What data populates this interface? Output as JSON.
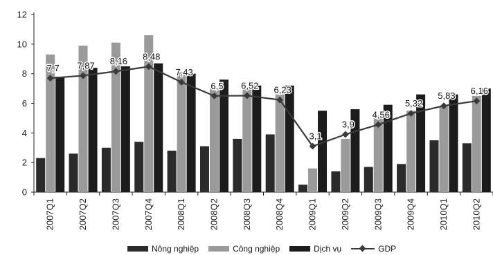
{
  "chart_data": {
    "type": "bar",
    "categories": [
      "2007Q1",
      "2007Q2",
      "2007Q3",
      "2007Q4",
      "2008Q1",
      "2008Q2",
      "2008Q3",
      "2008Q4",
      "2009Q1",
      "2009Q2",
      "2009Q3",
      "2009Q4",
      "2010Q1",
      "2010Q2"
    ],
    "series": [
      {
        "name": "Nông nghiệp",
        "type": "bar",
        "color": "#2b2b2b",
        "values": [
          2.3,
          2.6,
          3.0,
          3.4,
          2.8,
          3.1,
          3.6,
          3.9,
          0.5,
          1.4,
          1.7,
          1.9,
          3.5,
          3.3
        ]
      },
      {
        "name": "Công nghiệp",
        "type": "bar",
        "color": "#9a9a9a",
        "values": [
          9.3,
          9.9,
          10.1,
          10.6,
          8.1,
          7.0,
          7.1,
          6.6,
          1.6,
          3.6,
          5.2,
          5.5,
          5.8,
          6.5
        ]
      },
      {
        "name": "Dịch vụ",
        "type": "bar",
        "color": "#1c1c1c",
        "values": [
          7.8,
          8.4,
          8.5,
          8.7,
          8.0,
          7.6,
          7.2,
          7.2,
          5.5,
          5.6,
          5.9,
          6.6,
          6.6,
          7.0
        ]
      },
      {
        "name": "GDP",
        "type": "line",
        "color": "#3a3a3a",
        "values": [
          7.7,
          7.87,
          8.16,
          8.48,
          7.43,
          6.5,
          6.52,
          6.23,
          3.1,
          3.9,
          4.56,
          5.32,
          5.83,
          6.16
        ],
        "labels": [
          "7,7",
          "7,87",
          "8,16",
          "8,48",
          "7,43",
          "6,5",
          "6,52",
          "6,23",
          "3,1",
          "3,9",
          "4,56",
          "5,32",
          "5,83",
          "6,16"
        ]
      }
    ],
    "ylim": [
      0,
      12
    ],
    "yticks": [
      0,
      2,
      4,
      6,
      8,
      10,
      12
    ],
    "ytick_labels": [
      "0",
      "2",
      "4",
      "6",
      "8",
      "10",
      "12"
    ],
    "grid": false,
    "legend_position": "bottom"
  }
}
